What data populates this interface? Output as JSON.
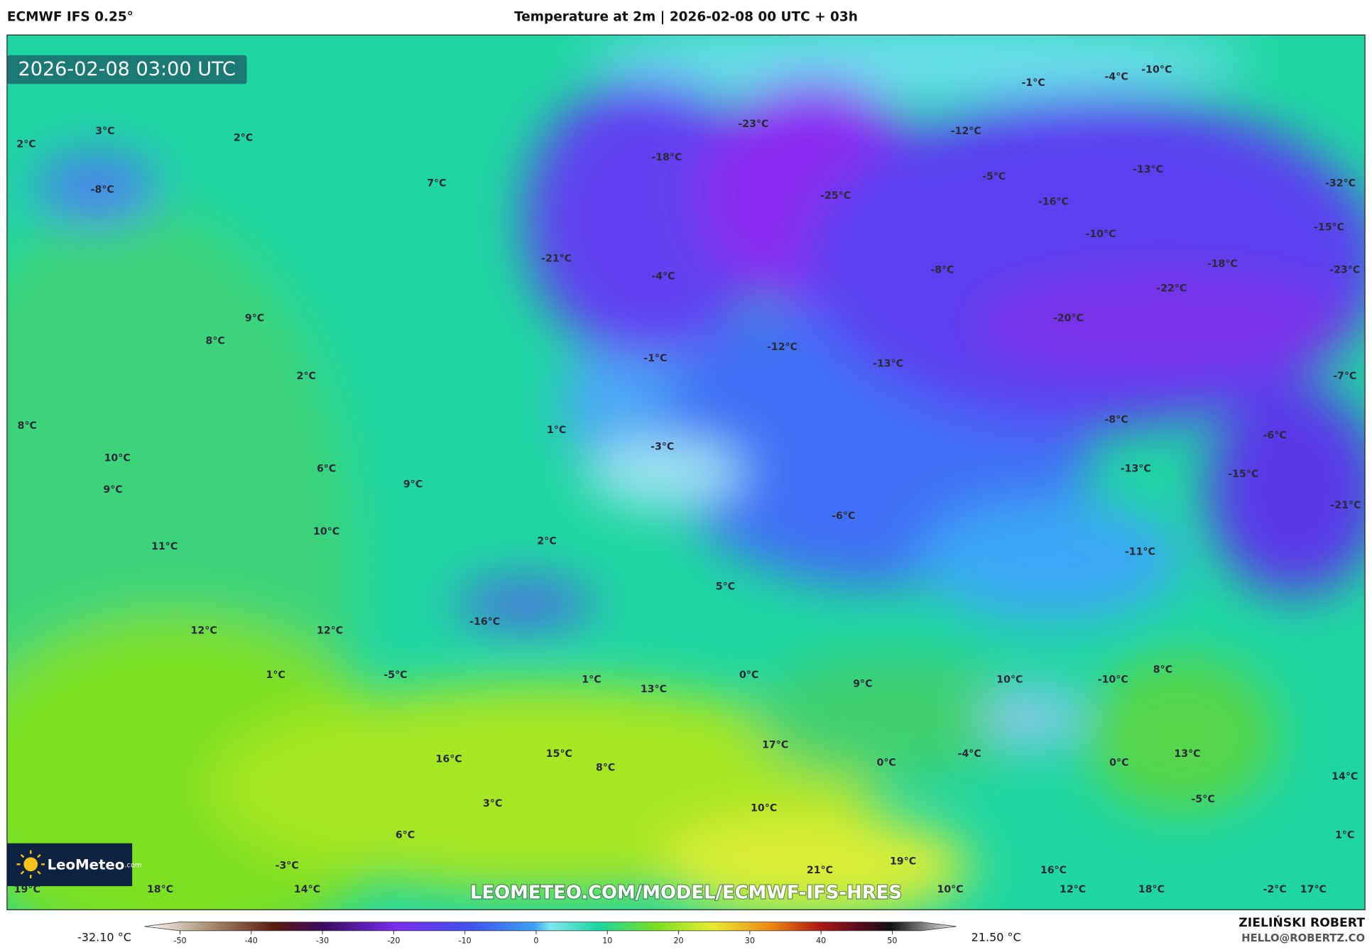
{
  "header": {
    "model": "ECMWF IFS 0.25°",
    "title": "Temperature at 2m | 2026-02-08 00 UTC + 03h"
  },
  "map": {
    "timestamp": "2026-02-08 03:00 UTC",
    "watermark": "LEOMETEO.COM/MODEL/ECMWF-IFS-HRES",
    "logo": "LeoMeteo",
    "logo_suffix": ".com",
    "labels": [
      "-1°C",
      "-4°C",
      "-10°C",
      "-23°C",
      "-12°C",
      "3°C",
      "2°C",
      "2°C",
      "-18°C",
      "-13°C",
      "-5°C",
      "-32°C",
      "7°C",
      "-8°C",
      "-25°C",
      "-16°C",
      "-15°C",
      "-10°C",
      "-21°C",
      "-18°C",
      "-23°C",
      "-8°C",
      "-4°C",
      "-22°C",
      "9°C",
      "-20°C",
      "8°C",
      "-12°C",
      "-1°C",
      "-13°C",
      "2°C",
      "-7°C",
      "8°C",
      "-8°C",
      "1°C",
      "-6°C",
      "-3°C",
      "10°C",
      "6°C",
      "-13°C",
      "-15°C",
      "9°C",
      "9°C",
      "-21°C",
      "-6°C",
      "10°C",
      "2°C",
      "11°C",
      "-11°C",
      "5°C",
      "-16°C",
      "12°C",
      "12°C",
      "1°C",
      "-5°C",
      "1°C",
      "0°C",
      "-10°C",
      "8°C",
      "9°C",
      "10°C",
      "13°C",
      "17°C",
      "13°C",
      "15°C",
      "-4°C",
      "16°C",
      "0°C",
      "0°C",
      "8°C",
      "14°C",
      "-5°C",
      "3°C",
      "10°C",
      "6°C",
      "1°C",
      "19°C",
      "-3°C",
      "21°C",
      "16°C",
      "19°C",
      "18°C",
      "14°C",
      "10°C",
      "12°C",
      "18°C",
      "-2°C",
      "17°C"
    ]
  },
  "colorbar": {
    "min_label": "-32.10 °C",
    "max_label": "21.50 °C",
    "lim": [
      -55,
      59
    ],
    "ticks": [
      -50,
      -40,
      -30,
      -20,
      -10,
      0,
      10,
      20,
      30,
      40,
      50
    ]
  },
  "credit": {
    "name": "ZIELIŃSKI ROBERT",
    "email": "HELLO@ROBERTZ.CO"
  }
}
